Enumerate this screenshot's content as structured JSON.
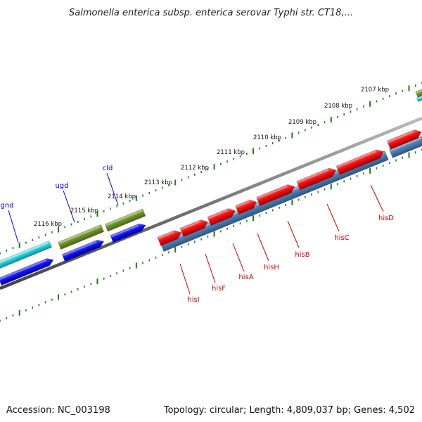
{
  "title": "Salmonella enterica subsp. enterica serovar Typhi str. CT18,...",
  "footer": {
    "accession": "Accession: NC_003198",
    "topology": "Topology: circular; Length: 4,809,037 bp; Genes: 4,502"
  },
  "colors": {
    "his_genes": "#ee1111",
    "his_band": "#4a78a8",
    "blue_genes": "#1010e8",
    "olive_genes": "#6b8a2a",
    "cyan_genes": "#22c8d0",
    "backbone": "#777777",
    "ticks": "#1e7a1e",
    "label_blue": "#0000cc",
    "label_red": "#cc0000"
  },
  "ticks": [
    "2107 kbp",
    "2108 kbp",
    "2109 kbp",
    "2110 kbp",
    "2111 kbp",
    "2112 kbp",
    "2113 kbp",
    "2114 kbp",
    "2115 kbp",
    "2116 kbp"
  ],
  "genes": {
    "blue_labels": [
      "gnd",
      "ugd",
      "cld"
    ],
    "red_labels": [
      "hisI",
      "hisF",
      "hisA",
      "hisH",
      "hisB",
      "hisC",
      "hisD"
    ]
  }
}
